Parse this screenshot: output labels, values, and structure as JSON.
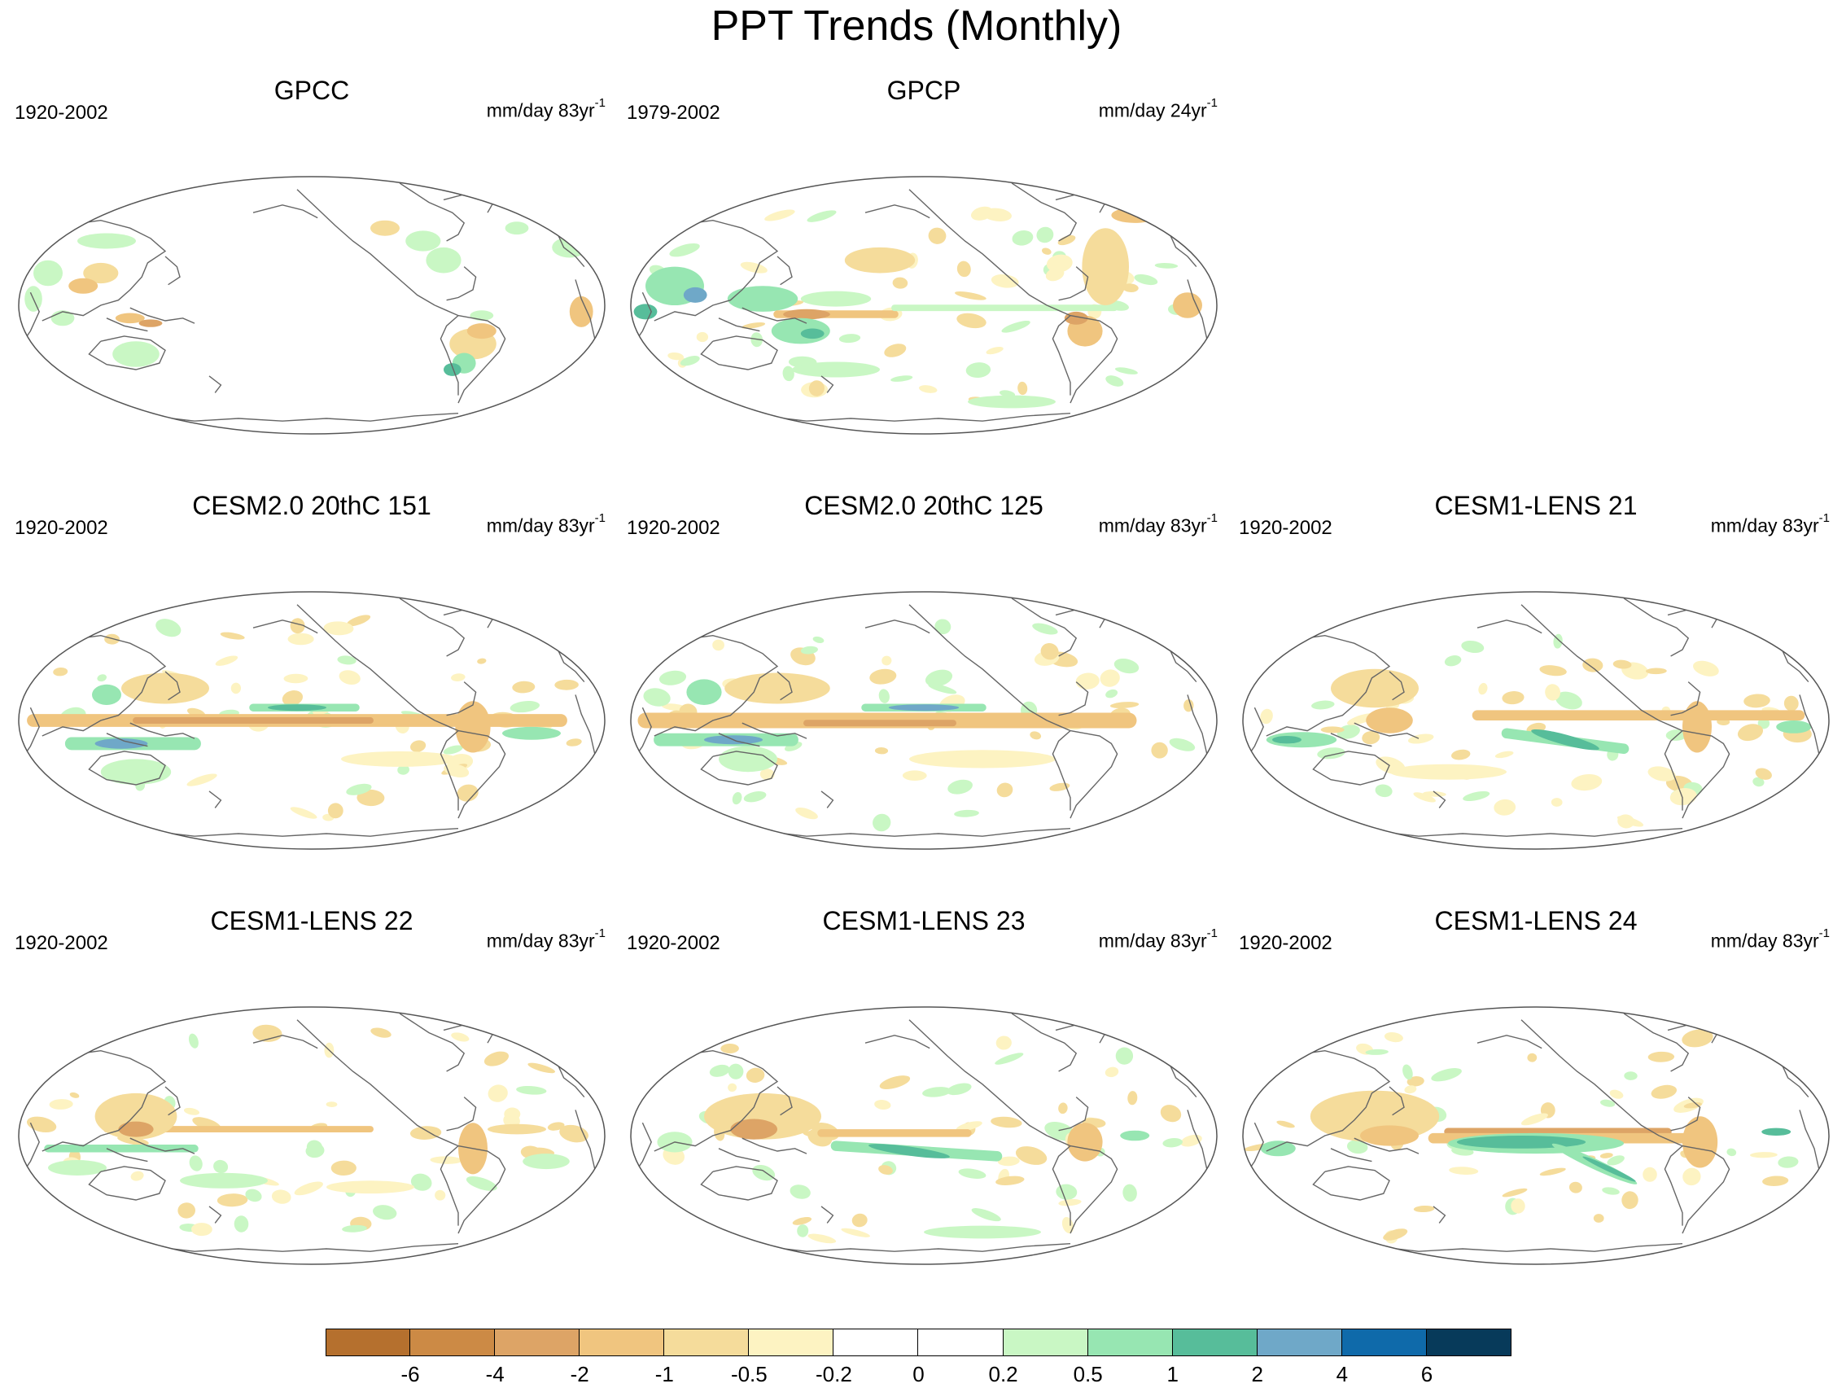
{
  "title": "PPT Trends (Monthly)",
  "panels": [
    {
      "title": "GPCC",
      "period": "1920-2002",
      "units": "mm/day 83yr",
      "units_sup": "-1",
      "pattern": "gpcc"
    },
    {
      "title": "GPCP",
      "period": "1979-2002",
      "units": "mm/day 24yr",
      "units_sup": "-1",
      "pattern": "gpcp"
    },
    {
      "title": "CESM2.0 20thC 151",
      "period": "1920-2002",
      "units": "mm/day 83yr",
      "units_sup": "-1",
      "pattern": "cesm2a"
    },
    {
      "title": "CESM2.0 20thC 125",
      "period": "1920-2002",
      "units": "mm/day 83yr",
      "units_sup": "-1",
      "pattern": "cesm2b"
    },
    {
      "title": "CESM1-LENS 21",
      "period": "1920-2002",
      "units": "mm/day 83yr",
      "units_sup": "-1",
      "pattern": "lens21"
    },
    {
      "title": "CESM1-LENS 22",
      "period": "1920-2002",
      "units": "mm/day 83yr",
      "units_sup": "-1",
      "pattern": "lens22"
    },
    {
      "title": "CESM1-LENS 23",
      "period": "1920-2002",
      "units": "mm/day 83yr",
      "units_sup": "-1",
      "pattern": "lens23"
    },
    {
      "title": "CESM1-LENS 24",
      "period": "1920-2002",
      "units": "mm/day 83yr",
      "units_sup": "-1",
      "pattern": "lens24"
    }
  ],
  "colorbar": {
    "colors": [
      "#b5702e",
      "#cc8a45",
      "#dda466",
      "#f0c57f",
      "#f5dc9b",
      "#fdf3c2",
      "#ffffff",
      "#ffffff",
      "#c9f7c4",
      "#97e6b2",
      "#57bd9a",
      "#6fa8c8",
      "#0f6aaa",
      "#073a5a"
    ],
    "labels": [
      "-6",
      "-4",
      "-2",
      "-1",
      "-0.5",
      "-0.2",
      "0",
      "0.2",
      "0.5",
      "1",
      "2",
      "4",
      "6"
    ]
  }
}
